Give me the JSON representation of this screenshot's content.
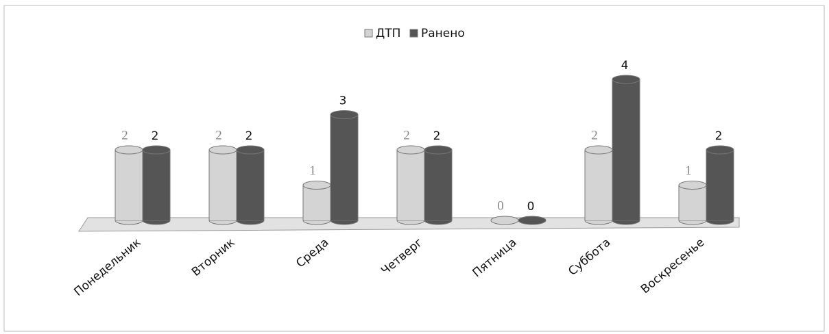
{
  "chart_data": {
    "type": "bar3d",
    "categories": [
      "Понедельник",
      "Вторник",
      "Среда",
      "Четверг",
      "Пятница",
      "Суббота",
      "Воскресенье"
    ],
    "series": [
      {
        "name": "ДТП",
        "color": "#d4d4d4",
        "values": [
          2,
          2,
          1,
          2,
          0,
          2,
          1
        ]
      },
      {
        "name": "Ранено",
        "color": "#555555",
        "values": [
          2,
          2,
          3,
          2,
          0,
          4,
          2
        ]
      }
    ],
    "legend": "top"
  }
}
